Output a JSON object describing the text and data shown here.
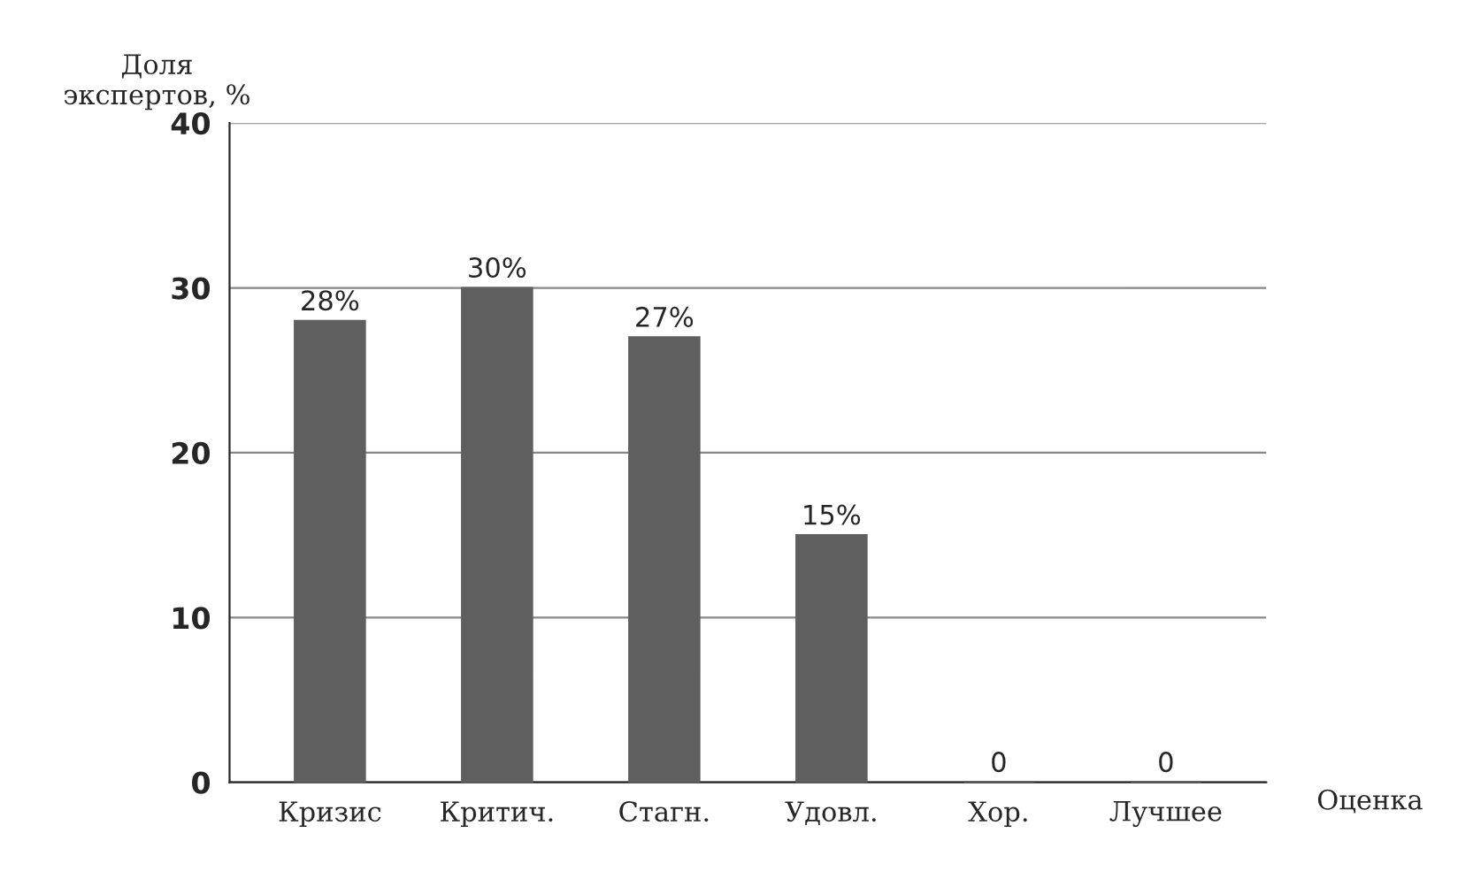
{
  "chart_data": {
    "type": "bar",
    "xlabel": "Оценка",
    "ylabel": "Доля\nэкспертов, %",
    "categories": [
      "Кризис",
      "Критич.",
      "Стагн.",
      "Удовл.",
      "Хор.",
      "Лучшее"
    ],
    "values": [
      28,
      30,
      27,
      15,
      0,
      0
    ],
    "value_labels": [
      "28%",
      "30%",
      "27%",
      "15%",
      "0",
      "0"
    ],
    "color": "#5f5f5f",
    "ylim": [
      0,
      40
    ],
    "yticks": [
      0,
      10,
      20,
      30,
      40
    ],
    "grid": "y",
    "legend": false
  }
}
